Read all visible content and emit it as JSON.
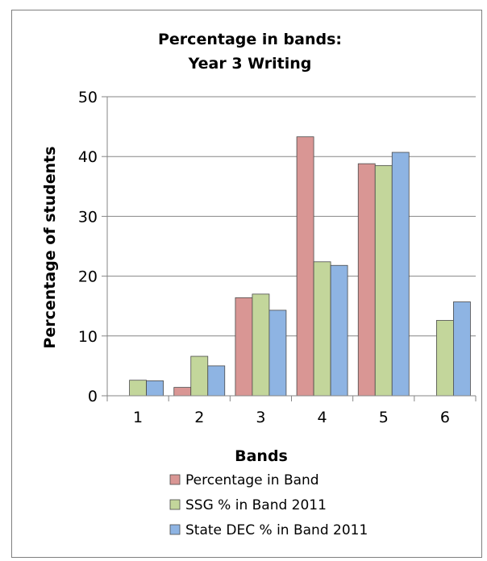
{
  "chart_data": {
    "type": "bar",
    "title": [
      "Percentage in bands:",
      "Year 3 Writing"
    ],
    "xlabel": "Bands",
    "ylabel": "Percentage of students",
    "categories": [
      "1",
      "2",
      "3",
      "4",
      "5",
      "6"
    ],
    "ylim": [
      0,
      50
    ],
    "yticks": [
      "0",
      "10",
      "20",
      "30",
      "40",
      "50"
    ],
    "grid": true,
    "legend_position": "bottom",
    "series": [
      {
        "name": "Percentage in Band",
        "color": "#d99694",
        "values": [
          0,
          1.4,
          16.4,
          43.3,
          38.8,
          0
        ]
      },
      {
        "name": "SSG % in Band 2011",
        "color": "#c3d69b",
        "values": [
          2.6,
          6.6,
          17.0,
          22.4,
          38.5,
          12.6
        ]
      },
      {
        "name": "State DEC % in Band 2011",
        "color": "#8eb4e3",
        "values": [
          2.5,
          5.0,
          14.3,
          21.8,
          40.7,
          15.7
        ]
      }
    ]
  }
}
